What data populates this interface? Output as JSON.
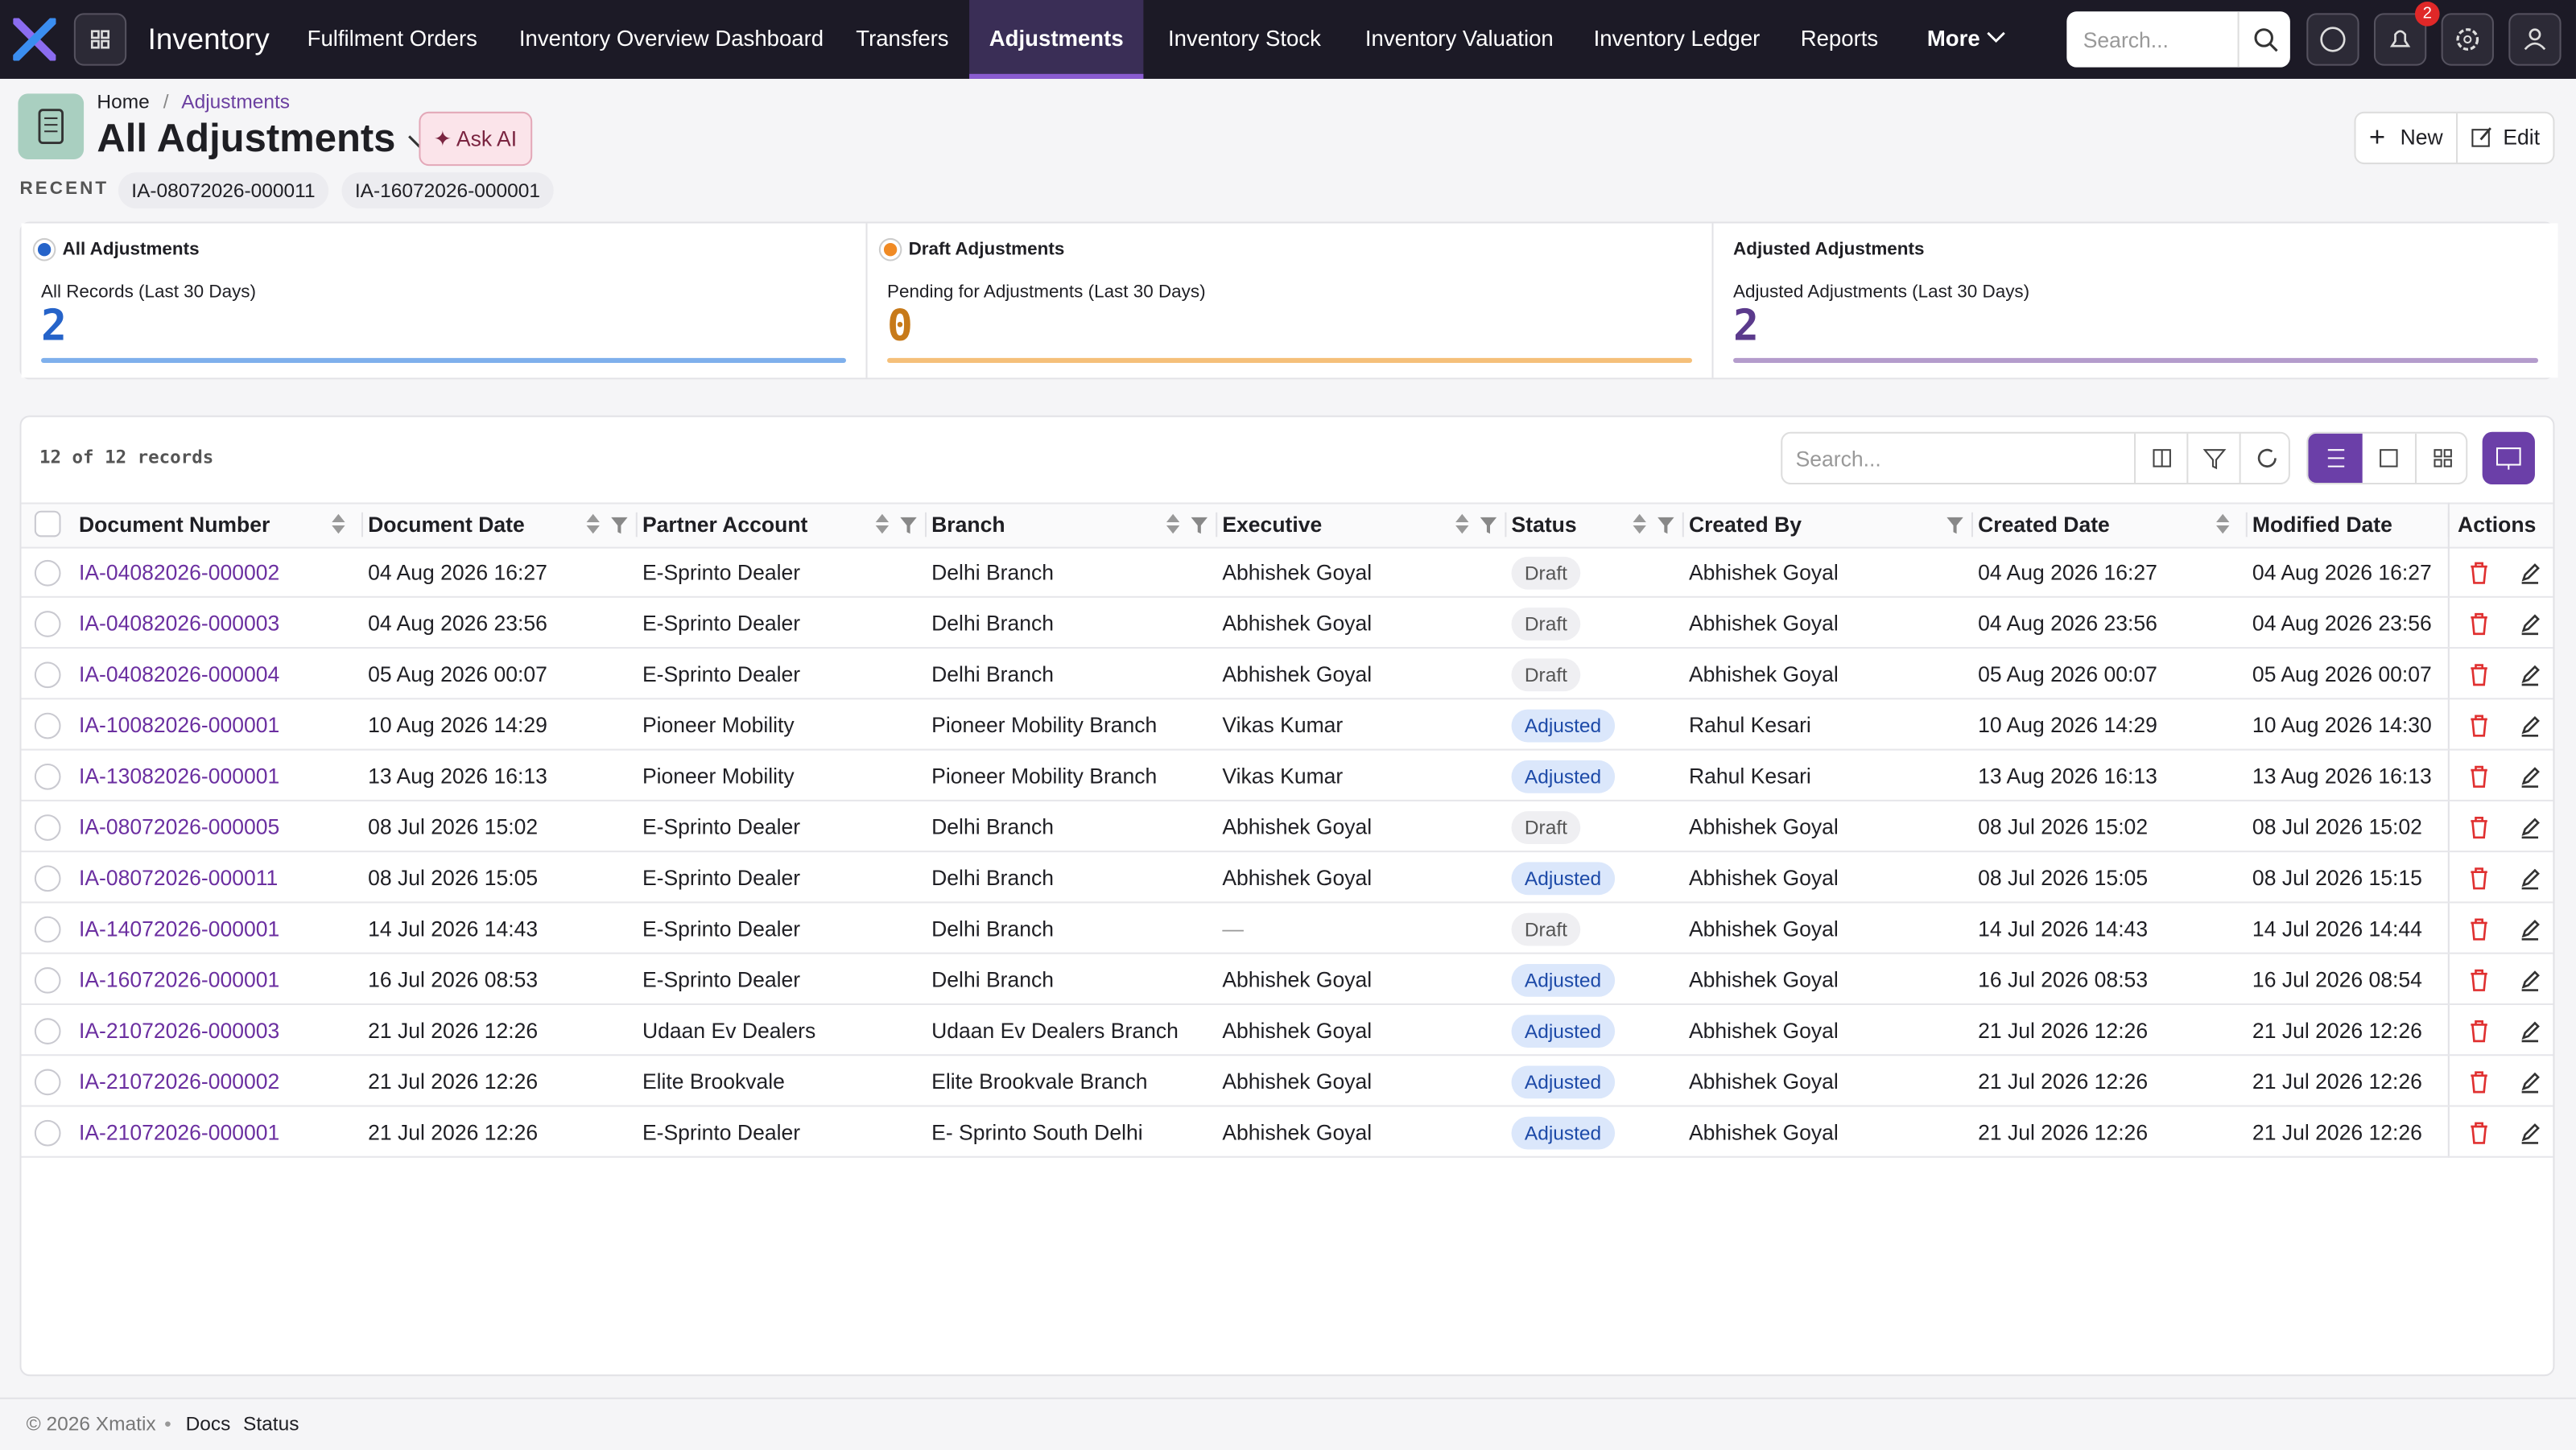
{
  "nav": {
    "brand": "Inventory",
    "items": [
      "Fulfilment Orders",
      "Inventory Overview Dashboard",
      "Transfers",
      "Adjustments",
      "Inventory Stock",
      "Inventory Valuation",
      "Inventory Ledger",
      "Reports"
    ],
    "active": "Adjustments",
    "more": "More",
    "search": "Search...",
    "notifications": "2"
  },
  "header": {
    "breadcrumb": [
      "Home",
      "/",
      "Adjustments"
    ],
    "title": "All Adjustments",
    "ask_ai": "✦ Ask AI",
    "new": "New",
    "edit": "Edit"
  },
  "recent": {
    "label": "RECENT",
    "items": [
      "IA-08072026-000011",
      "IA-16072026-000001"
    ]
  },
  "cards": [
    {
      "title": "All Adjustments",
      "subtitle": "All Records (Last 30 Days)",
      "value": "2",
      "color": "#2563c9",
      "dot": "#2563c9",
      "bar": "#7fb0ec"
    },
    {
      "title": "Draft Adjustments",
      "subtitle": "Pending for Adjustments (Last 30 Days)",
      "value": "0",
      "color": "#c77a1a",
      "dot": "#f08a24",
      "bar": "#f5c07a"
    },
    {
      "title": "Adjusted Adjustments",
      "subtitle": "Adjusted Adjustments (Last 30 Days)",
      "value": "2",
      "color": "#5b3a8c",
      "bar": "#b49ccc"
    }
  ],
  "table": {
    "count": "12 of 12 records",
    "search": "Search...",
    "columns": [
      "Document Number",
      "Document Date",
      "Partner Account",
      "Branch",
      "Executive",
      "Status",
      "Created By",
      "Created Date",
      "Modified Date",
      "Actions"
    ],
    "rows": [
      [
        "IA-04082026-000002",
        "04 Aug 2026 16:27",
        "E-Sprinto Dealer",
        "Delhi Branch",
        "Abhishek Goyal",
        "Draft",
        "Abhishek Goyal",
        "04 Aug 2026 16:27",
        "04 Aug 2026 16:27"
      ],
      [
        "IA-04082026-000003",
        "04 Aug 2026 23:56",
        "E-Sprinto Dealer",
        "Delhi Branch",
        "Abhishek Goyal",
        "Draft",
        "Abhishek Goyal",
        "04 Aug 2026 23:56",
        "04 Aug 2026 23:56"
      ],
      [
        "IA-04082026-000004",
        "05 Aug 2026 00:07",
        "E-Sprinto Dealer",
        "Delhi Branch",
        "Abhishek Goyal",
        "Draft",
        "Abhishek Goyal",
        "05 Aug 2026 00:07",
        "05 Aug 2026 00:07"
      ],
      [
        "IA-10082026-000001",
        "10 Aug 2026 14:29",
        "Pioneer Mobility",
        "Pioneer Mobility Branch",
        "Vikas Kumar",
        "Adjusted",
        "Rahul Kesari",
        "10 Aug 2026 14:29",
        "10 Aug 2026 14:30"
      ],
      [
        "IA-13082026-000001",
        "13 Aug 2026 16:13",
        "Pioneer Mobility",
        "Pioneer Mobility Branch",
        "Vikas Kumar",
        "Adjusted",
        "Rahul Kesari",
        "13 Aug 2026 16:13",
        "13 Aug 2026 16:13"
      ],
      [
        "IA-08072026-000005",
        "08 Jul 2026 15:02",
        "E-Sprinto Dealer",
        "Delhi Branch",
        "Abhishek Goyal",
        "Draft",
        "Abhishek Goyal",
        "08 Jul 2026 15:02",
        "08 Jul 2026 15:02"
      ],
      [
        "IA-08072026-000011",
        "08 Jul 2026 15:05",
        "E-Sprinto Dealer",
        "Delhi Branch",
        "Abhishek Goyal",
        "Adjusted",
        "Abhishek Goyal",
        "08 Jul 2026 15:05",
        "08 Jul 2026 15:15"
      ],
      [
        "IA-14072026-000001",
        "14 Jul 2026 14:43",
        "E-Sprinto Dealer",
        "Delhi Branch",
        "—",
        "Draft",
        "Abhishek Goyal",
        "14 Jul 2026 14:43",
        "14 Jul 2026 14:44"
      ],
      [
        "IA-16072026-000001",
        "16 Jul 2026 08:53",
        "E-Sprinto Dealer",
        "Delhi Branch",
        "Abhishek Goyal",
        "Adjusted",
        "Abhishek Goyal",
        "16 Jul 2026 08:53",
        "16 Jul 2026 08:54"
      ],
      [
        "IA-21072026-000003",
        "21 Jul 2026 12:26",
        "Udaan Ev Dealers",
        "Udaan Ev Dealers Branch",
        "Abhishek Goyal",
        "Adjusted",
        "Abhishek Goyal",
        "21 Jul 2026 12:26",
        "21 Jul 2026 12:26"
      ],
      [
        "IA-21072026-000002",
        "21 Jul 2026 12:26",
        "Elite Brookvale",
        "Elite Brookvale Branch",
        "Abhishek Goyal",
        "Adjusted",
        "Abhishek Goyal",
        "21 Jul 2026 12:26",
        "21 Jul 2026 12:26"
      ],
      [
        "IA-21072026-000001",
        "21 Jul 2026 12:26",
        "E-Sprinto Dealer",
        "E- Sprinto South Delhi",
        "Abhishek Goyal",
        "Adjusted",
        "Abhishek Goyal",
        "21 Jul 2026 12:26",
        "21 Jul 2026 12:26"
      ]
    ]
  },
  "footer": [
    "© 2026 Xmatix",
    "•",
    "Docs",
    "Status"
  ]
}
